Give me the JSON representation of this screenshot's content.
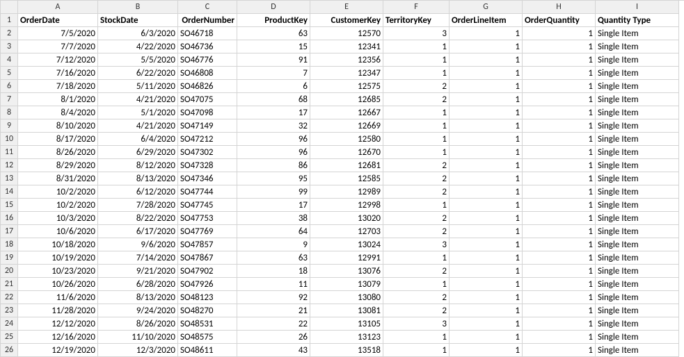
{
  "columns": [
    "A",
    "B",
    "C",
    "D",
    "E",
    "F",
    "G",
    "H",
    "I"
  ],
  "headerRow": [
    "OrderDate",
    "StockDate",
    "OrderNumber",
    "ProductKey",
    "CustomerKey",
    "TerritoryKey",
    "OrderLineItem",
    "OrderQuantity",
    "Quantity Type"
  ],
  "headerAlign": [
    "left",
    "left",
    "right",
    "right",
    "right",
    "left",
    "left",
    "left",
    "left"
  ],
  "rows": [
    [
      "7/5/2020",
      "6/3/2020",
      "SO46718",
      "63",
      "12570",
      "3",
      "1",
      "1",
      "Single Item"
    ],
    [
      "7/7/2020",
      "4/22/2020",
      "SO46736",
      "15",
      "12341",
      "1",
      "1",
      "1",
      "Single Item"
    ],
    [
      "7/12/2020",
      "5/5/2020",
      "SO46776",
      "91",
      "12356",
      "1",
      "1",
      "1",
      "Single Item"
    ],
    [
      "7/16/2020",
      "6/22/2020",
      "SO46808",
      "7",
      "12347",
      "1",
      "1",
      "1",
      "Single Item"
    ],
    [
      "7/18/2020",
      "5/11/2020",
      "SO46826",
      "6",
      "12575",
      "2",
      "1",
      "1",
      "Single Item"
    ],
    [
      "8/1/2020",
      "4/21/2020",
      "SO47075",
      "68",
      "12685",
      "2",
      "1",
      "1",
      "Single Item"
    ],
    [
      "8/4/2020",
      "5/1/2020",
      "SO47098",
      "17",
      "12667",
      "1",
      "1",
      "1",
      "Single Item"
    ],
    [
      "8/10/2020",
      "4/21/2020",
      "SO47149",
      "32",
      "12669",
      "1",
      "1",
      "1",
      "Single Item"
    ],
    [
      "8/17/2020",
      "6/4/2020",
      "SO47212",
      "96",
      "12580",
      "1",
      "1",
      "1",
      "Single Item"
    ],
    [
      "8/26/2020",
      "6/29/2020",
      "SO47302",
      "96",
      "12670",
      "1",
      "1",
      "1",
      "Single Item"
    ],
    [
      "8/29/2020",
      "8/12/2020",
      "SO47328",
      "86",
      "12681",
      "2",
      "1",
      "1",
      "Single Item"
    ],
    [
      "8/31/2020",
      "8/13/2020",
      "SO47346",
      "95",
      "12585",
      "2",
      "1",
      "1",
      "Single Item"
    ],
    [
      "10/2/2020",
      "6/12/2020",
      "SO47744",
      "99",
      "12989",
      "2",
      "1",
      "1",
      "Single Item"
    ],
    [
      "10/2/2020",
      "7/28/2020",
      "SO47745",
      "17",
      "12998",
      "1",
      "1",
      "1",
      "Single Item"
    ],
    [
      "10/3/2020",
      "8/22/2020",
      "SO47753",
      "38",
      "13020",
      "2",
      "1",
      "1",
      "Single Item"
    ],
    [
      "10/6/2020",
      "6/17/2020",
      "SO47769",
      "64",
      "12703",
      "2",
      "1",
      "1",
      "Single Item"
    ],
    [
      "10/18/2020",
      "9/6/2020",
      "SO47857",
      "9",
      "13024",
      "3",
      "1",
      "1",
      "Single Item"
    ],
    [
      "10/19/2020",
      "7/14/2020",
      "SO47867",
      "63",
      "12991",
      "1",
      "1",
      "1",
      "Single Item"
    ],
    [
      "10/23/2020",
      "9/21/2020",
      "SO47902",
      "18",
      "13076",
      "2",
      "1",
      "1",
      "Single Item"
    ],
    [
      "10/26/2020",
      "6/28/2020",
      "SO47926",
      "11",
      "13079",
      "1",
      "1",
      "1",
      "Single Item"
    ],
    [
      "11/6/2020",
      "8/13/2020",
      "SO48123",
      "92",
      "13080",
      "2",
      "1",
      "1",
      "Single Item"
    ],
    [
      "11/28/2020",
      "9/24/2020",
      "SO48270",
      "21",
      "13081",
      "2",
      "1",
      "1",
      "Single Item"
    ],
    [
      "12/12/2020",
      "8/26/2020",
      "SO48531",
      "22",
      "13105",
      "3",
      "1",
      "1",
      "Single Item"
    ],
    [
      "12/16/2020",
      "11/10/2020",
      "SO48575",
      "26",
      "13123",
      "1",
      "1",
      "1",
      "Single Item"
    ],
    [
      "12/19/2020",
      "12/3/2020",
      "SO48611",
      "43",
      "13518",
      "1",
      "1",
      "1",
      "Single Item"
    ]
  ],
  "cellAlign": [
    "right",
    "right",
    "left",
    "right",
    "right",
    "right",
    "right",
    "right",
    "left"
  ],
  "rowHeaderStart": 1,
  "colors": {
    "headerBg": "#f0f0f0",
    "gridBorder": "#d4d4d4",
    "cellBg": "#ffffff",
    "text": "#000000"
  }
}
